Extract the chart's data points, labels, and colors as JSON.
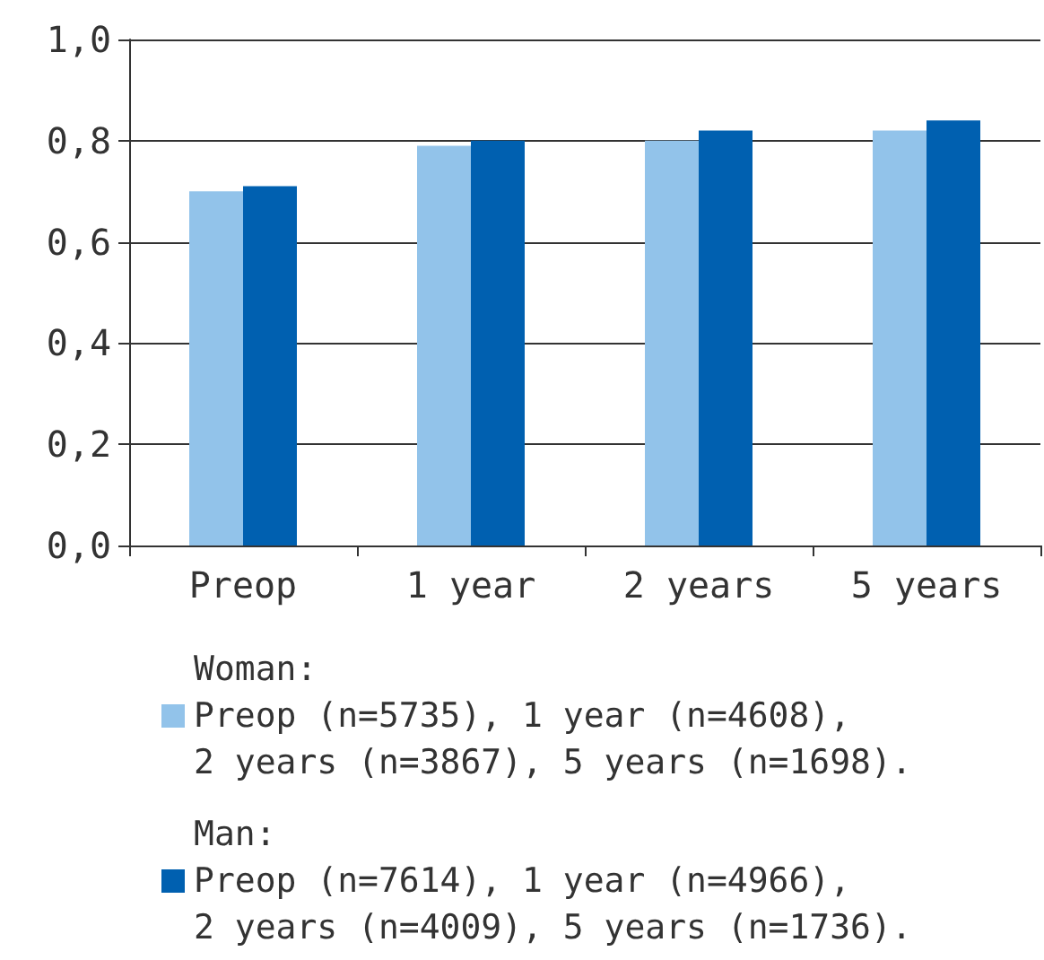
{
  "chart_data": {
    "type": "bar",
    "categories": [
      "Preop",
      "1 year",
      "2 years",
      "5 years"
    ],
    "series": [
      {
        "name": "Woman:\nPreop (n=5735), 1 year (n=4608),\n2 years (n=3867), 5 years (n=1698).",
        "color": "#92c3ea",
        "values": [
          0.7,
          0.79,
          0.8,
          0.82
        ]
      },
      {
        "name": "Man:\nPreop (n=7614), 1 year (n=4966),\n2 years (n=4009), 5 years (n=1736).",
        "color": "#0060b0",
        "values": [
          0.71,
          0.8,
          0.82,
          0.84
        ]
      }
    ],
    "ylim": [
      0,
      1
    ],
    "yticks": [
      {
        "value": 0,
        "label": "0,0"
      },
      {
        "value": 0.2,
        "label": "0,2"
      },
      {
        "value": 0.4,
        "label": "0,4"
      },
      {
        "value": 0.6,
        "label": "0,6"
      },
      {
        "value": 0.8,
        "label": "0,8"
      },
      {
        "value": 1,
        "label": "1,0"
      }
    ],
    "grid": "y",
    "legend": "bottom"
  }
}
